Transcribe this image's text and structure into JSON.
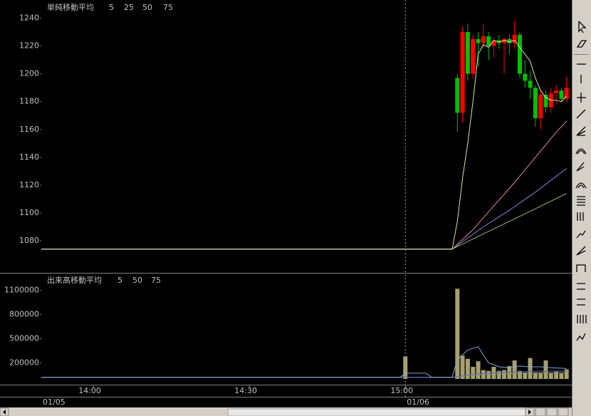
{
  "chart_data": [
    {
      "type": "candlestick",
      "label": "単純移動平均",
      "xlim": [
        830,
        932
      ],
      "ylim": [
        1057,
        1252
      ],
      "yticks": [
        1080,
        1100,
        1120,
        1140,
        1160,
        1180,
        1200,
        1220,
        1240
      ],
      "up_color": "#ff0000",
      "down_color": "#00c000",
      "x": [
        910,
        911,
        912,
        913,
        914,
        915,
        916,
        917,
        918,
        919,
        920,
        921,
        922,
        923,
        924,
        925,
        926,
        927,
        928,
        929,
        930,
        931
      ],
      "open": [
        1197,
        1172,
        1230,
        1200,
        1225,
        1222,
        1227,
        1220,
        1224,
        1222,
        1225,
        1222,
        1228,
        1200,
        1195,
        1190,
        1168,
        1185,
        1176,
        1186,
        1188,
        1182
      ],
      "high": [
        1200,
        1234,
        1236,
        1228,
        1230,
        1236,
        1230,
        1226,
        1228,
        1226,
        1228,
        1238,
        1230,
        1210,
        1202,
        1192,
        1188,
        1188,
        1190,
        1192,
        1190,
        1198
      ],
      "low": [
        1158,
        1165,
        1195,
        1196,
        1205,
        1218,
        1210,
        1212,
        1218,
        1200,
        1214,
        1218,
        1197,
        1190,
        1182,
        1162,
        1160,
        1172,
        1172,
        1178,
        1180,
        1180
      ],
      "close": [
        1172,
        1230,
        1200,
        1225,
        1222,
        1227,
        1220,
        1224,
        1222,
        1225,
        1222,
        1228,
        1200,
        1195,
        1190,
        1168,
        1185,
        1176,
        1186,
        1188,
        1182,
        1190
      ],
      "series": [
        {
          "name": "5",
          "color": "#d8e4a8",
          "x": [
            830,
            909,
            910,
            911,
            912,
            913,
            914,
            915,
            916,
            917,
            918,
            919,
            920,
            921,
            922,
            923,
            924,
            925,
            926,
            927,
            928,
            929,
            930,
            931
          ],
          "values": [
            1074,
            1074,
            1094,
            1125,
            1150,
            1180,
            1214,
            1221,
            1219,
            1224,
            1223,
            1224,
            1223,
            1224,
            1219,
            1214,
            1209,
            1197,
            1188,
            1183,
            1181,
            1181,
            1180,
            1184
          ]
        },
        {
          "name": "25",
          "color": "#e08888",
          "x": [
            830,
            909,
            913,
            917,
            921,
            925,
            929,
            931
          ],
          "values": [
            1074,
            1074,
            1088,
            1105,
            1122,
            1140,
            1158,
            1166
          ]
        },
        {
          "name": "50",
          "color": "#8888e0",
          "x": [
            830,
            909,
            915,
            920,
            925,
            931
          ],
          "values": [
            1074,
            1074,
            1090,
            1102,
            1115,
            1132
          ]
        },
        {
          "name": "75",
          "color": "#90c060",
          "x": [
            830,
            909,
            915,
            920,
            925,
            931
          ],
          "values": [
            1074,
            1074,
            1085,
            1094,
            1103,
            1114
          ]
        }
      ]
    },
    {
      "type": "bar",
      "label": "出来高移動平均",
      "xlim": [
        830,
        932
      ],
      "ylim": [
        0,
        1300000
      ],
      "yticks": [
        200000,
        500000,
        800000,
        1100000
      ],
      "xticks": [
        {
          "value": 840,
          "label": "14:00"
        },
        {
          "value": 870,
          "label": "14:30"
        },
        {
          "value": 900,
          "label": "15:00"
        }
      ],
      "date_ticks": [
        {
          "value": 830,
          "label": "01/05"
        },
        {
          "value": 900,
          "label": "01/06"
        }
      ],
      "color": "#a8a070",
      "x": [
        900,
        910,
        911,
        912,
        913,
        914,
        915,
        916,
        917,
        918,
        919,
        920,
        921,
        922,
        923,
        924,
        925,
        926,
        927,
        928,
        929,
        930,
        931
      ],
      "values": [
        280000,
        1120000,
        290000,
        250000,
        150000,
        220000,
        110000,
        100000,
        150000,
        100000,
        110000,
        160000,
        230000,
        100000,
        80000,
        260000,
        80000,
        70000,
        230000,
        70000,
        90000,
        70000,
        120000
      ],
      "series": [
        {
          "name": "5",
          "color": "#80a8d0",
          "x": [
            830,
            899,
            900,
            904,
            905,
            909,
            910,
            912,
            914,
            916,
            918,
            920,
            922,
            924,
            926,
            928,
            931
          ],
          "values": [
            20000,
            20000,
            72000,
            72000,
            20000,
            20000,
            240000,
            360000,
            400000,
            200000,
            150000,
            140000,
            160000,
            150000,
            150000,
            140000,
            130000
          ]
        },
        {
          "name": "50",
          "color": "#6060c8",
          "x": [
            830,
            909,
            915,
            920,
            925,
            931
          ],
          "values": [
            22000,
            22000,
            70000,
            85000,
            95000,
            100000
          ]
        },
        {
          "name": "75",
          "color": "#80a060",
          "x": [
            830,
            909,
            915,
            920,
            925,
            931
          ],
          "values": [
            20000,
            20000,
            55000,
            65000,
            75000,
            80000
          ]
        }
      ]
    }
  ]
}
